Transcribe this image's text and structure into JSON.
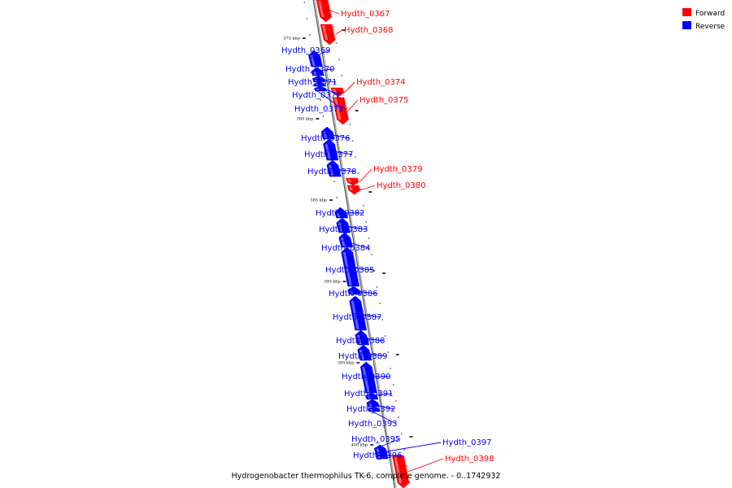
{
  "caption": "Hydrogenobacter thermophilus TK-6, complete genome. - 0..1742932",
  "legend": [
    {
      "label": "Forward",
      "color": "#ff0000"
    },
    {
      "label": "Reverse",
      "color": "#0000ff"
    }
  ],
  "colors": {
    "forward": "#ff0000",
    "reverse": "#0000ff",
    "backbone": "#888888"
  },
  "ticks": [
    "375 kbp",
    "380 kbp",
    "385 kbp",
    "390 kbp",
    "395 kbp",
    "400 kbp"
  ],
  "genes": [
    {
      "label": "Hydth_0367",
      "strand": "forward"
    },
    {
      "label": "Hydth_0368",
      "strand": "forward"
    },
    {
      "label": "Hydth_0369",
      "strand": "reverse"
    },
    {
      "label": "Hydth_0370",
      "strand": "reverse"
    },
    {
      "label": "Hydth_0371",
      "strand": "reverse"
    },
    {
      "label": "Hydth_0372",
      "strand": "reverse"
    },
    {
      "label": "Hydth_0373",
      "strand": "reverse"
    },
    {
      "label": "Hydth_0374",
      "strand": "forward"
    },
    {
      "label": "Hydth_0375",
      "strand": "forward"
    },
    {
      "label": "Hydth_0376",
      "strand": "reverse"
    },
    {
      "label": "Hydth_0377",
      "strand": "reverse"
    },
    {
      "label": "Hydth_0378",
      "strand": "reverse"
    },
    {
      "label": "Hydth_0379",
      "strand": "forward"
    },
    {
      "label": "Hydth_0380",
      "strand": "forward"
    },
    {
      "label": "Hydth_0382",
      "strand": "reverse"
    },
    {
      "label": "Hydth_0383",
      "strand": "reverse"
    },
    {
      "label": "Hydth_0384",
      "strand": "reverse"
    },
    {
      "label": "Hydth_0385",
      "strand": "reverse"
    },
    {
      "label": "Hydth_0386",
      "strand": "reverse"
    },
    {
      "label": "Hydth_0387",
      "strand": "reverse"
    },
    {
      "label": "Hydth_0388",
      "strand": "reverse"
    },
    {
      "label": "Hydth_0389",
      "strand": "reverse"
    },
    {
      "label": "Hydth_0390",
      "strand": "reverse"
    },
    {
      "label": "Hydth_0391",
      "strand": "reverse"
    },
    {
      "label": "Hydth_0392",
      "strand": "reverse"
    },
    {
      "label": "Hydth_0393",
      "strand": "reverse"
    },
    {
      "label": "Hydth_0395",
      "strand": "reverse"
    },
    {
      "label": "Hydth_0396",
      "strand": "reverse"
    },
    {
      "label": "Hydth_0397",
      "strand": "reverse"
    },
    {
      "label": "Hydth_0398",
      "strand": "forward"
    }
  ]
}
